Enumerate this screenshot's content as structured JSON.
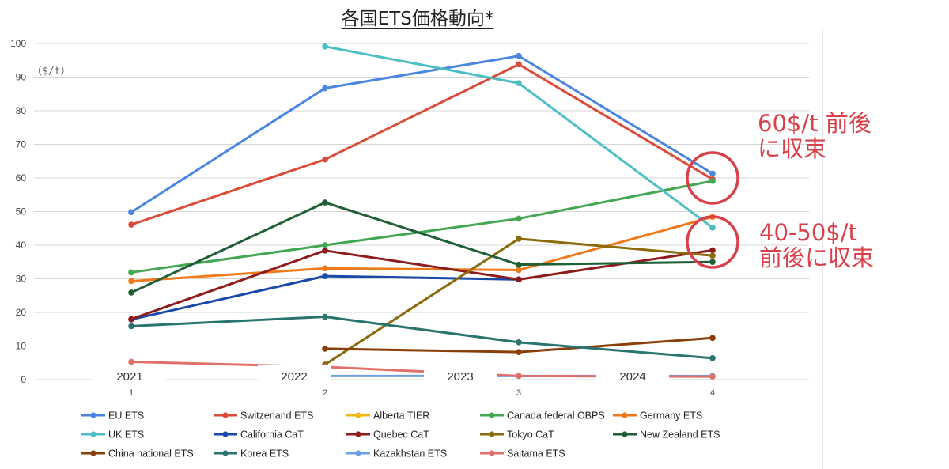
{
  "chart_data": {
    "type": "line",
    "title": "各国ETS価格動向*",
    "unit_label": "（$/t）",
    "x": [
      "1",
      "2",
      "3",
      "4"
    ],
    "year_labels": [
      "2021",
      "2022",
      "2023",
      "2024"
    ],
    "ylim": [
      0,
      100
    ],
    "yticks": [
      0,
      10,
      20,
      30,
      40,
      50,
      60,
      70,
      80,
      90,
      100
    ],
    "grid": true,
    "legend_position": "bottom",
    "series": [
      {
        "name": "EU ETS",
        "color": "#4a86e0",
        "values": [
          49.8,
          86.7,
          96.3,
          61.3
        ]
      },
      {
        "name": "Switzerland ETS",
        "color": "#db4b3a",
        "values": [
          46.1,
          65.5,
          93.8,
          59.6
        ]
      },
      {
        "name": "Alberta TIER",
        "color": "#f2b705",
        "values": [
          null,
          null,
          null,
          null
        ]
      },
      {
        "name": "Canada federal OBPS",
        "color": "#43a651",
        "values": [
          31.9,
          40.0,
          47.9,
          59.1
        ]
      },
      {
        "name": "Germany ETS",
        "color": "#f07a1a",
        "values": [
          29.3,
          33.1,
          32.6,
          48.4
        ]
      },
      {
        "name": "UK ETS",
        "color": "#4dbfc4",
        "values": [
          null,
          99.1,
          88.2,
          45.2
        ]
      },
      {
        "name": "California CaT",
        "color": "#1a4aa8",
        "values": [
          17.9,
          30.8,
          29.8,
          null
        ]
      },
      {
        "name": "Quebec CaT",
        "color": "#8e1c1c",
        "values": [
          18.0,
          38.4,
          29.8,
          38.5
        ]
      },
      {
        "name": "Tokyo CaT",
        "color": "#8b6a0c",
        "values": [
          null,
          4.5,
          41.9,
          36.9
        ]
      },
      {
        "name": "New Zealand ETS",
        "color": "#1f5e36",
        "values": [
          25.9,
          52.7,
          34.2,
          35.0
        ]
      },
      {
        "name": "China national ETS",
        "color": "#8a3f0a",
        "values": [
          null,
          9.2,
          8.2,
          12.4
        ]
      },
      {
        "name": "Korea ETS",
        "color": "#2a7470",
        "values": [
          15.9,
          18.7,
          11.1,
          6.4
        ]
      },
      {
        "name": "Kazakhstan ETS",
        "color": "#6fa0e6",
        "values": [
          null,
          1.1,
          1.1,
          1.1
        ]
      },
      {
        "name": "Saitama ETS",
        "color": "#e0706a",
        "values": [
          5.3,
          3.8,
          1.1,
          0.9
        ]
      }
    ]
  },
  "annotations": {
    "a60_line1": "60$/t 前後",
    "a60_line2": "に収束",
    "a40_line1": "40-50$/t",
    "a40_line2": "前後に収束",
    "color": "#d9404a"
  }
}
